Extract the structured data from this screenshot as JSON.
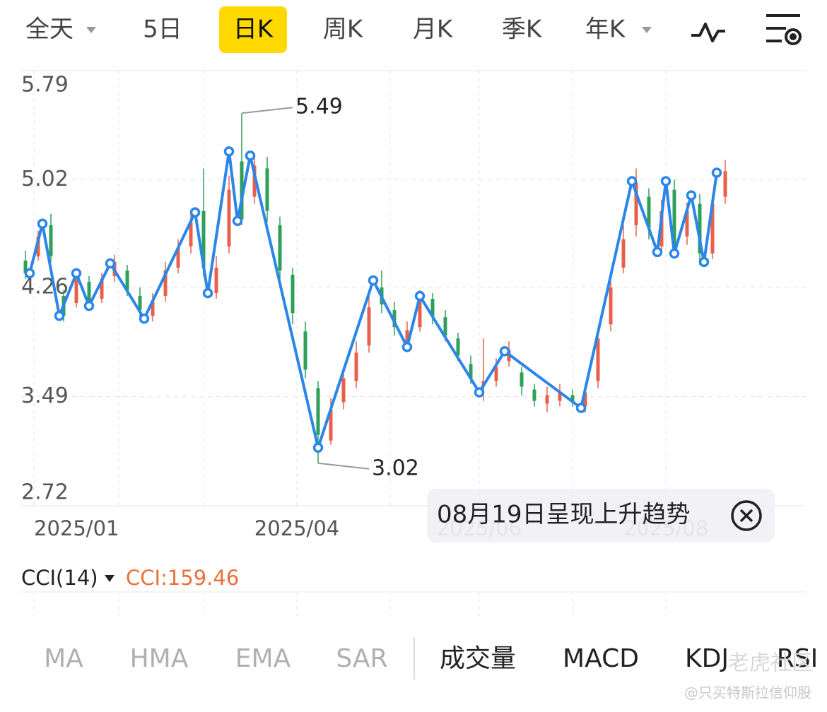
{
  "tabs": [
    "全天",
    "5日",
    "日K",
    "周K",
    "月K",
    "季K",
    "年K"
  ],
  "active_tab": 2,
  "chart_data": {
    "type": "candlestick",
    "x": [
      0,
      3,
      6,
      9,
      12,
      15,
      18,
      21,
      24,
      27,
      30,
      33,
      36,
      39,
      42,
      45,
      48,
      51,
      54,
      57,
      60,
      63,
      66,
      69,
      72,
      75,
      78,
      81,
      84,
      87,
      90,
      93,
      96,
      99,
      102,
      105,
      108,
      111,
      114,
      117,
      120,
      123,
      126,
      129,
      132,
      135,
      138,
      141,
      144,
      147,
      150,
      153,
      156,
      159,
      162,
      165
    ],
    "open": [
      4.45,
      4.48,
      4.7,
      4.2,
      4.15,
      4.3,
      4.18,
      4.34,
      4.38,
      4.2,
      4.06,
      4.2,
      4.4,
      4.55,
      4.8,
      4.22,
      4.55,
      5.15,
      4.9,
      5.1,
      4.7,
      4.35,
      3.95,
      3.55,
      3.18,
      3.45,
      3.6,
      3.85,
      4.26,
      4.1,
      3.86,
      3.98,
      4.18,
      4.05,
      3.9,
      3.72,
      3.56,
      3.6,
      3.74,
      3.66,
      3.54,
      3.44,
      3.46,
      3.5,
      3.42,
      3.6,
      4.0,
      4.4,
      4.7,
      4.9,
      4.55,
      4.95,
      4.62,
      4.85,
      4.5,
      4.9
    ],
    "close": [
      4.36,
      4.62,
      4.48,
      4.06,
      4.32,
      4.16,
      4.32,
      4.44,
      4.24,
      4.1,
      4.16,
      4.38,
      4.54,
      4.72,
      4.4,
      4.4,
      4.95,
      4.74,
      5.12,
      4.8,
      4.38,
      4.08,
      3.68,
      3.22,
      3.4,
      3.62,
      3.8,
      4.12,
      4.14,
      3.98,
      3.96,
      4.18,
      4.06,
      3.92,
      3.78,
      3.62,
      3.6,
      3.7,
      3.82,
      3.56,
      3.46,
      3.5,
      3.52,
      3.46,
      3.52,
      3.9,
      4.26,
      4.6,
      5.0,
      4.68,
      4.8,
      4.55,
      4.8,
      4.5,
      4.85,
      5.08
    ],
    "high": [
      4.52,
      4.66,
      4.78,
      4.24,
      4.38,
      4.34,
      4.36,
      4.49,
      4.42,
      4.26,
      4.22,
      4.44,
      4.6,
      4.78,
      5.1,
      4.48,
      5.05,
      5.49,
      5.2,
      5.18,
      4.76,
      4.4,
      4.02,
      3.6,
      3.48,
      3.7,
      3.88,
      4.2,
      4.38,
      4.16,
      4.02,
      4.24,
      4.22,
      4.1,
      3.94,
      3.78,
      3.9,
      3.76,
      3.88,
      3.7,
      3.58,
      3.56,
      3.58,
      3.54,
      3.58,
      3.98,
      4.32,
      4.7,
      5.1,
      4.96,
      4.88,
      5.02,
      4.86,
      4.92,
      4.92,
      5.16
    ],
    "low": [
      4.32,
      4.45,
      4.44,
      4.02,
      4.12,
      4.1,
      4.15,
      4.3,
      4.2,
      4.05,
      4.02,
      4.16,
      4.36,
      4.5,
      4.34,
      4.18,
      4.5,
      4.7,
      4.85,
      4.72,
      4.3,
      4.0,
      3.62,
      3.02,
      3.15,
      3.4,
      3.55,
      3.8,
      4.08,
      3.92,
      3.82,
      3.95,
      4.0,
      3.88,
      3.74,
      3.58,
      3.46,
      3.56,
      3.7,
      3.5,
      3.42,
      3.38,
      3.42,
      3.42,
      3.38,
      3.55,
      3.95,
      4.36,
      4.62,
      4.6,
      4.5,
      4.48,
      4.56,
      4.42,
      4.46,
      4.85
    ],
    "up_color": "#e8604c",
    "down_color": "#2ea05a",
    "zigzag": {
      "color": "#2a86e8",
      "x": [
        1,
        4,
        8,
        12,
        15,
        20,
        28,
        40,
        43,
        48,
        50,
        53,
        69,
        82,
        90,
        93,
        107,
        113,
        131,
        143,
        149,
        151,
        153,
        157,
        160,
        163
      ],
      "values": [
        4.36,
        4.71,
        4.06,
        4.36,
        4.13,
        4.43,
        4.04,
        4.79,
        4.22,
        5.22,
        4.73,
        5.19,
        3.13,
        4.31,
        3.84,
        4.2,
        3.52,
        3.81,
        3.41,
        5.01,
        4.51,
        5.01,
        4.5,
        4.91,
        4.44,
        5.07
      ]
    },
    "annotations": [
      {
        "x": 51,
        "value": 5.49
      },
      {
        "x": 69,
        "value": 3.02
      }
    ],
    "ylim": [
      2.72,
      5.79
    ],
    "yticks": [
      5.79,
      5.02,
      4.26,
      3.49,
      2.72
    ],
    "xlim": [
      -1,
      184
    ],
    "xticks": [
      {
        "value": 2,
        "label": "2025/01"
      },
      {
        "value": 22,
        "label": null
      },
      {
        "value": 42,
        "label": null
      },
      {
        "value": 64,
        "label": "2025/04"
      },
      {
        "value": 86,
        "label": null
      },
      {
        "value": 107,
        "label": "2025/06"
      },
      {
        "value": 129,
        "label": null
      },
      {
        "value": 151,
        "label": "2025/08"
      }
    ],
    "grid": true
  },
  "indicator": {
    "name": "CCI(14)",
    "value_label": "CCI:159.46"
  },
  "toast": "08月19日呈现上升趋势",
  "indicator_tabs": [
    "MA",
    "HMA",
    "EMA",
    "SAR"
  ],
  "sub_tabs": [
    "成交量",
    "MACD",
    "KDJ",
    "RSI"
  ],
  "watermark": [
    "老虎社区",
    "@只买特斯拉信仰股"
  ]
}
